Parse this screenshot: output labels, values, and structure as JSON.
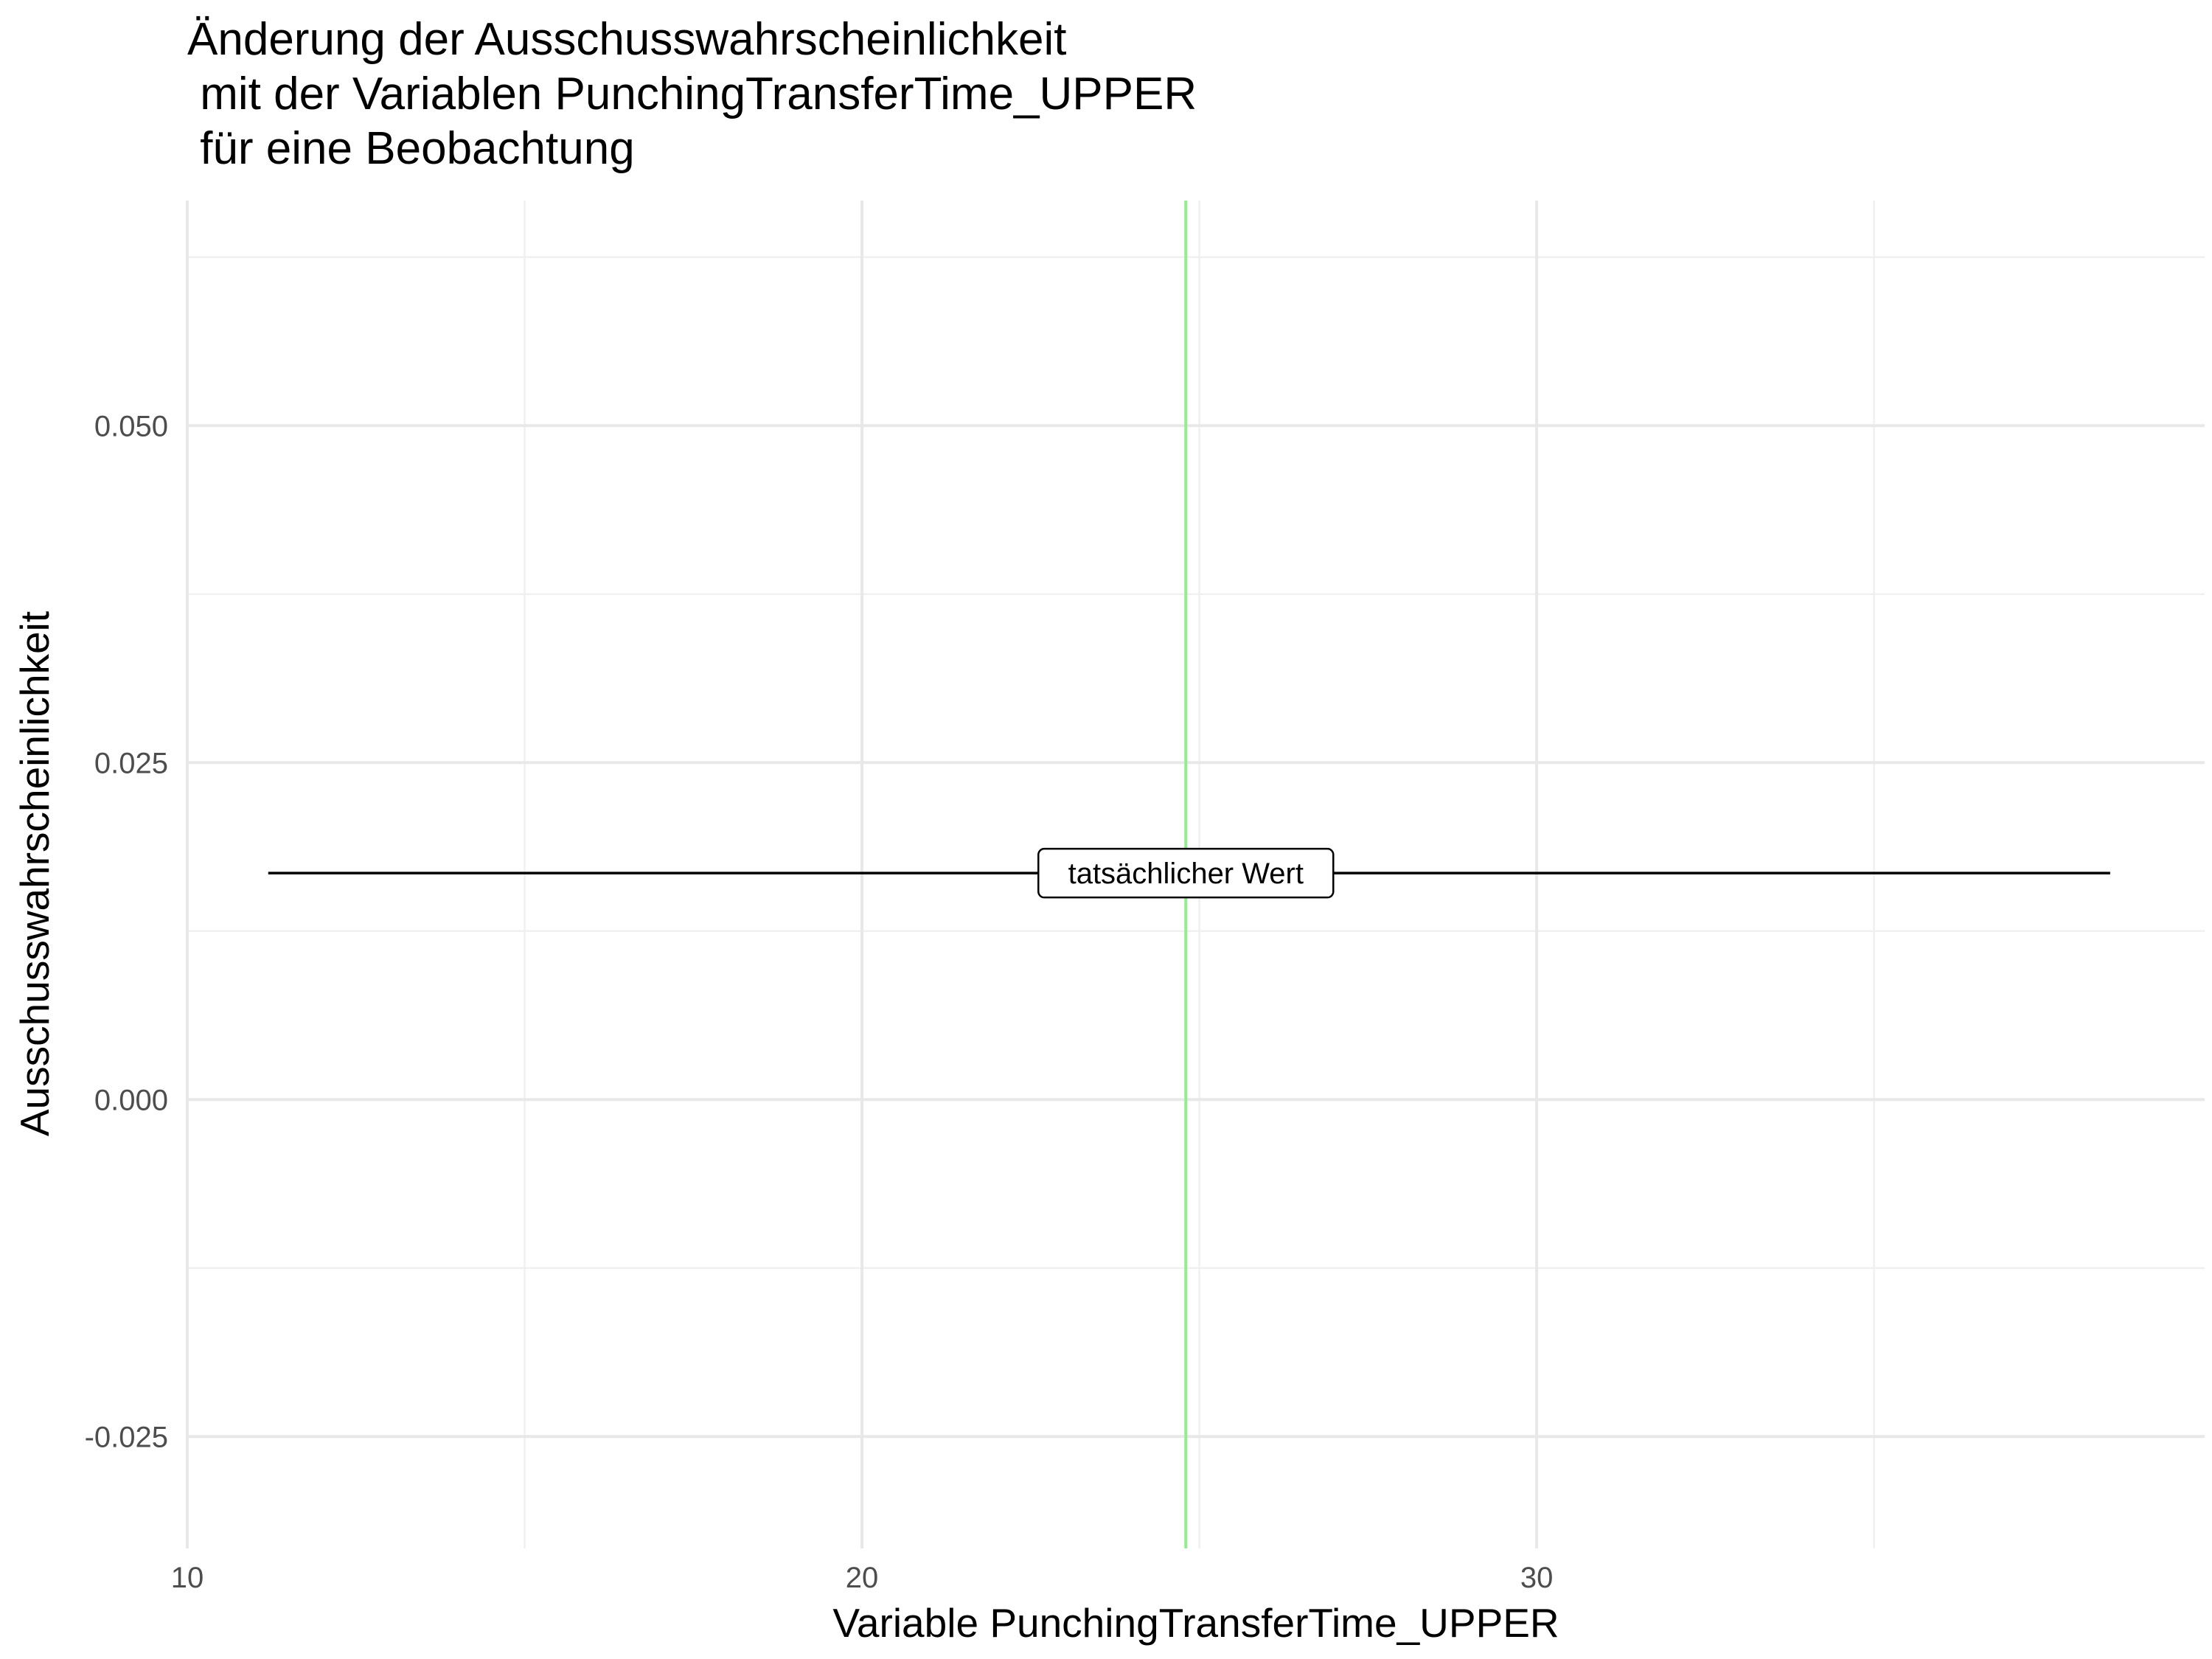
{
  "chart_data": {
    "type": "line",
    "title_lines": [
      "Änderung der Ausschusswahrscheinlichkeit",
      " mit der Variablen PunchingTransferTime_UPPER",
      " für eine Beobachtung"
    ],
    "xlabel": "Variable PunchingTransferTime_UPPER",
    "ylabel": "Ausschusswahrscheinlichkeit",
    "xlim": [
      10,
      39.9
    ],
    "ylim": [
      -0.0333,
      0.0667
    ],
    "x_ticks": [
      10,
      20,
      30
    ],
    "x_tick_labels": [
      "10",
      "20",
      "30"
    ],
    "x_minor_ticks": [
      15,
      25,
      35
    ],
    "y_ticks": [
      -0.025,
      0,
      0.025,
      0.05
    ],
    "y_tick_labels": [
      "-0.025",
      "0.000",
      "0.025",
      "0.050"
    ],
    "y_minor_ticks": [
      -0.0125,
      0.0125,
      0.0375,
      0.0625
    ],
    "grid": true,
    "series": [
      {
        "x": [
          11.2,
          38.5
        ],
        "y": [
          0.0168,
          0.0168
        ],
        "color": "#000000"
      }
    ],
    "vline": {
      "x": 24.8,
      "color": "#90ee90"
    },
    "annotation": {
      "text": "tatsächlicher Wert",
      "x": 24.8,
      "y": 0.0168
    }
  }
}
